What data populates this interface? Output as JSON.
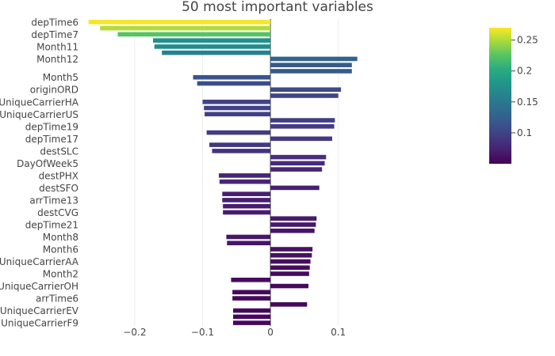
{
  "chart_data": {
    "type": "bar",
    "orientation": "horizontal",
    "title": "50 most important variables",
    "xlabel": "",
    "ylabel": "",
    "xlim": [
      -0.27,
      0.285
    ],
    "x_ticks": [
      -0.2,
      -0.1,
      0,
      0.1
    ],
    "x_tick_labels": [
      "−0.2",
      "−0.1",
      "0",
      "0.1"
    ],
    "zero_line": true,
    "grid": "vertical",
    "colorscale": "viridis",
    "color_range": [
      0.05,
      0.27
    ],
    "colorbar_ticks": [
      0.1,
      0.15,
      0.2,
      0.25
    ],
    "colorbar_position": "top-right",
    "bars": [
      {
        "label": "depTime6",
        "value": -0.268,
        "importance": 0.268
      },
      {
        "label": "",
        "value": -0.251,
        "importance": 0.251
      },
      {
        "label": "depTime7",
        "value": -0.225,
        "importance": 0.225
      },
      {
        "label": "",
        "value": -0.173,
        "importance": 0.173
      },
      {
        "label": "Month11",
        "value": -0.171,
        "importance": 0.171
      },
      {
        "label": "",
        "value": -0.16,
        "importance": 0.16
      },
      {
        "label": "Month12",
        "value": 0.128,
        "importance": 0.128
      },
      {
        "label": "",
        "value": 0.12,
        "importance": 0.12
      },
      {
        "label": "",
        "value": 0.12,
        "importance": 0.12
      },
      {
        "label": "Month5",
        "value": -0.114,
        "importance": 0.114
      },
      {
        "label": "",
        "value": -0.108,
        "importance": 0.108
      },
      {
        "label": "originORD",
        "value": 0.104,
        "importance": 0.104
      },
      {
        "label": "",
        "value": 0.1,
        "importance": 0.1
      },
      {
        "label": "UniqueCarrierHA",
        "value": -0.1,
        "importance": 0.1
      },
      {
        "label": "",
        "value": -0.098,
        "importance": 0.098
      },
      {
        "label": "UniqueCarrierUS",
        "value": -0.097,
        "importance": 0.097
      },
      {
        "label": "",
        "value": 0.095,
        "importance": 0.095
      },
      {
        "label": "depTime19",
        "value": 0.094,
        "importance": 0.094
      },
      {
        "label": "",
        "value": -0.094,
        "importance": 0.094
      },
      {
        "label": "depTime17",
        "value": 0.091,
        "importance": 0.091
      },
      {
        "label": "",
        "value": -0.09,
        "importance": 0.09
      },
      {
        "label": "destSLC",
        "value": -0.086,
        "importance": 0.086
      },
      {
        "label": "",
        "value": 0.082,
        "importance": 0.082
      },
      {
        "label": "DayOfWeek5",
        "value": 0.08,
        "importance": 0.08
      },
      {
        "label": "",
        "value": 0.076,
        "importance": 0.076
      },
      {
        "label": "destPHX",
        "value": -0.076,
        "importance": 0.076
      },
      {
        "label": "",
        "value": -0.075,
        "importance": 0.075
      },
      {
        "label": "destSFO",
        "value": 0.072,
        "importance": 0.072
      },
      {
        "label": "",
        "value": -0.071,
        "importance": 0.071
      },
      {
        "label": "arrTime13",
        "value": -0.071,
        "importance": 0.071
      },
      {
        "label": "",
        "value": -0.07,
        "importance": 0.07
      },
      {
        "label": "destCVG",
        "value": -0.07,
        "importance": 0.07
      },
      {
        "label": "",
        "value": 0.068,
        "importance": 0.068
      },
      {
        "label": "depTime21",
        "value": 0.067,
        "importance": 0.067
      },
      {
        "label": "",
        "value": 0.065,
        "importance": 0.065
      },
      {
        "label": "Month8",
        "value": -0.065,
        "importance": 0.065
      },
      {
        "label": "",
        "value": -0.064,
        "importance": 0.064
      },
      {
        "label": "Month6",
        "value": 0.062,
        "importance": 0.062
      },
      {
        "label": "",
        "value": 0.061,
        "importance": 0.061
      },
      {
        "label": "UniqueCarrierAA",
        "value": 0.059,
        "importance": 0.059
      },
      {
        "label": "",
        "value": 0.058,
        "importance": 0.058
      },
      {
        "label": "Month2",
        "value": 0.057,
        "importance": 0.057
      },
      {
        "label": "",
        "value": -0.058,
        "importance": 0.058
      },
      {
        "label": "UniqueCarrierOH",
        "value": 0.056,
        "importance": 0.056
      },
      {
        "label": "",
        "value": -0.056,
        "importance": 0.056
      },
      {
        "label": "arrTime6",
        "value": -0.056,
        "importance": 0.056
      },
      {
        "label": "",
        "value": 0.054,
        "importance": 0.054
      },
      {
        "label": "UniqueCarrierEV",
        "value": -0.055,
        "importance": 0.055
      },
      {
        "label": "",
        "value": -0.055,
        "importance": 0.055
      },
      {
        "label": "UniqueCarrierF9",
        "value": -0.055,
        "importance": 0.055
      }
    ]
  }
}
